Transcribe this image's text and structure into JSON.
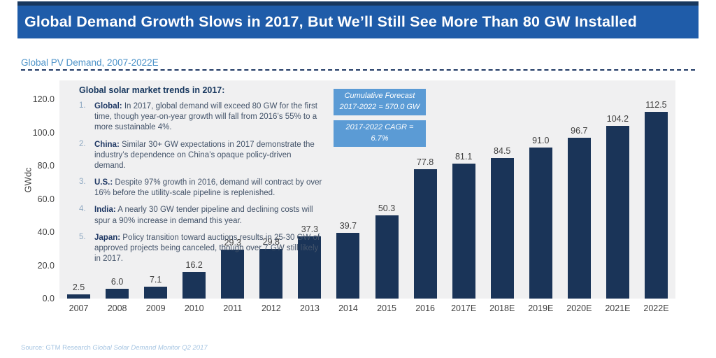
{
  "header": {
    "title": "Global Demand Growth Slows in 2017, But We’ll Still See More Than 80 GW Installed",
    "subtitle": "Global PV Demand, 2007-2022E"
  },
  "colors": {
    "title_bar": "#1F5CA9",
    "title_bar_border": "#17375E",
    "bar": "#1A3458",
    "plot_background": "#F0F0F1",
    "callout_background": "#5B9BD5",
    "subtitle_text": "#4D93C9",
    "source_text": "#A6C5E2"
  },
  "chart_data": {
    "type": "bar",
    "title": "Global PV Demand, 2007-2022E",
    "categories": [
      "2007",
      "2008",
      "2009",
      "2010",
      "2011",
      "2012",
      "2013",
      "2014",
      "2015",
      "2016",
      "2017E",
      "2018E",
      "2019E",
      "2020E",
      "2021E",
      "2022E"
    ],
    "values": [
      2.5,
      6.0,
      7.1,
      16.2,
      29.3,
      29.8,
      37.3,
      39.7,
      50.3,
      77.8,
      81.1,
      84.5,
      91.0,
      96.7,
      104.2,
      112.5
    ],
    "xlabel": "",
    "ylabel": "GWdc",
    "ylim": [
      0,
      120
    ],
    "yticks": [
      0,
      20,
      40,
      60,
      80,
      100,
      120
    ],
    "grid": false,
    "legend": false,
    "value_labels": true,
    "bar_color": "#1A3458"
  },
  "trends": {
    "title": "Global solar market trends in 2017:",
    "items": [
      {
        "num": "1.",
        "lead": "Global:",
        "text": " In 2017, global demand will exceed 80 GW for the first time, though year-on-year growth will fall from 2016’s 55% to a more sustainable 4%."
      },
      {
        "num": "2.",
        "lead": "China:",
        "text": " Similar 30+ GW expectations in 2017 demonstrate the industry’s dependence on China’s opaque policy-driven demand."
      },
      {
        "num": "3.",
        "lead": "U.S.:",
        "text": " Despite 97% growth in 2016, demand will contract by over 16% before the utility-scale pipeline is replenished."
      },
      {
        "num": "4.",
        "lead": "India:",
        "text": " A nearly 30 GW tender pipeline and declining costs will spur a 90% increase in demand this year."
      },
      {
        "num": "5.",
        "lead": "Japan:",
        "text": " Policy transition toward auctions results in 25-30 GW of approved projects being canceled, though over 7 GW still likely in 2017."
      }
    ]
  },
  "callouts": [
    {
      "lines": [
        "Cumulative Forecast",
        "2017-2022 = 570.0 GW"
      ]
    },
    {
      "lines": [
        "2017-2022 CAGR = 6.7%"
      ]
    }
  ],
  "source": {
    "prefix": "Source: GTM Research ",
    "italic": "Global Solar Demand Monitor Q2 2017"
  }
}
